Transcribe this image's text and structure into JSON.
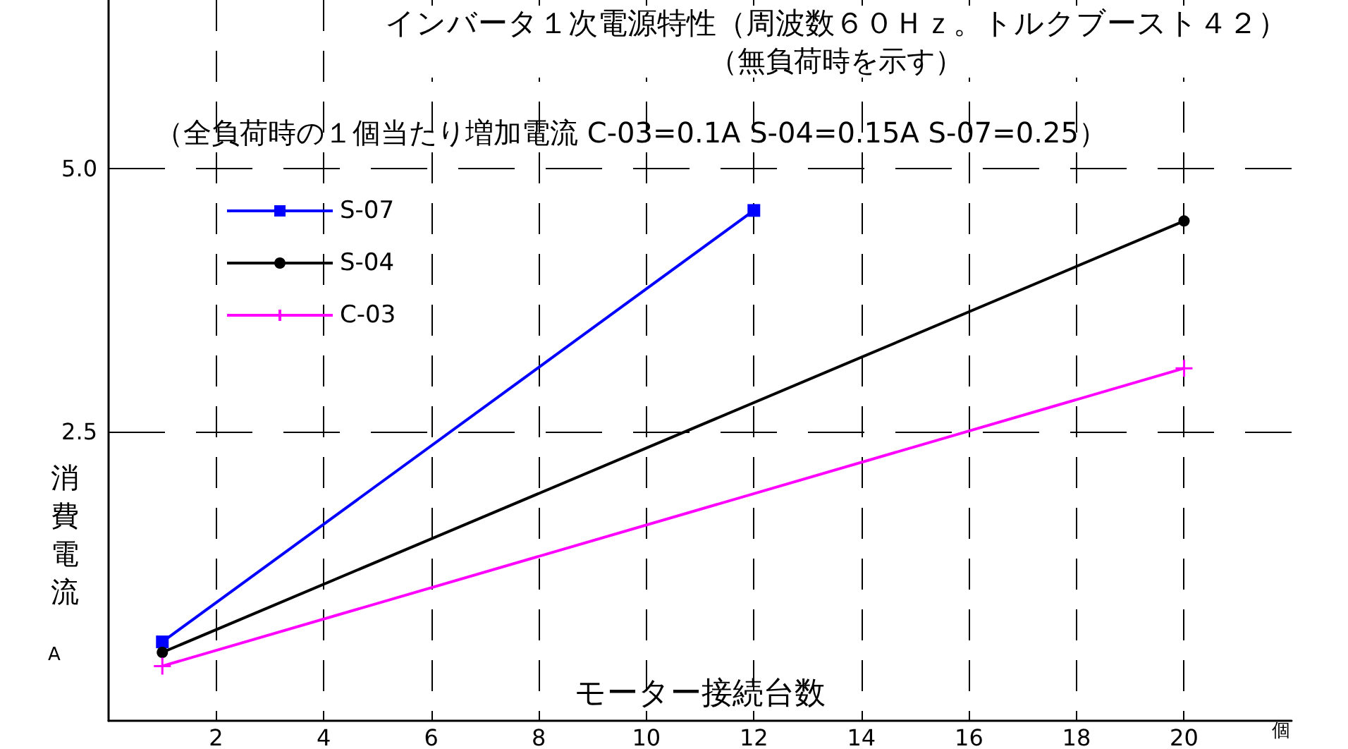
{
  "chart_data": {
    "type": "line",
    "title": "インバータ１次電源特性（周波数６０Ｈｚ。トルクブースト４２）",
    "subtitle": "（無負荷時を示す）",
    "annotations": [
      "（全負荷時の１個当たり増加電流 C-03=0.1A S-04=0.15A S-07=0.25）",
      "A",
      "個"
    ],
    "xlabel": "モーター接続台数",
    "ylabel": "消費電流",
    "series": [
      {
        "name": "S-07",
        "color": "#0000ff",
        "marker": "square",
        "x": [
          1,
          12
        ],
        "values": [
          0.5,
          4.6
        ]
      },
      {
        "name": "S-04",
        "color": "#000000",
        "marker": "circle",
        "x": [
          1,
          20
        ],
        "values": [
          0.4,
          4.5
        ]
      },
      {
        "name": "C-03",
        "color": "#ff00ff",
        "marker": "cross",
        "x": [
          1,
          20
        ],
        "values": [
          0.27,
          3.1
        ]
      }
    ],
    "xlim": [
      0,
      22
    ],
    "xticks": [
      2,
      4,
      6,
      8,
      10,
      12,
      14,
      16,
      18,
      20
    ],
    "ylim": [
      -0.25,
      6.6
    ],
    "yticks": [
      {
        "value": 2.5,
        "label": "2.5"
      },
      {
        "value": 5,
        "label": "5.0"
      }
    ],
    "grid": true,
    "legend": "top left"
  }
}
